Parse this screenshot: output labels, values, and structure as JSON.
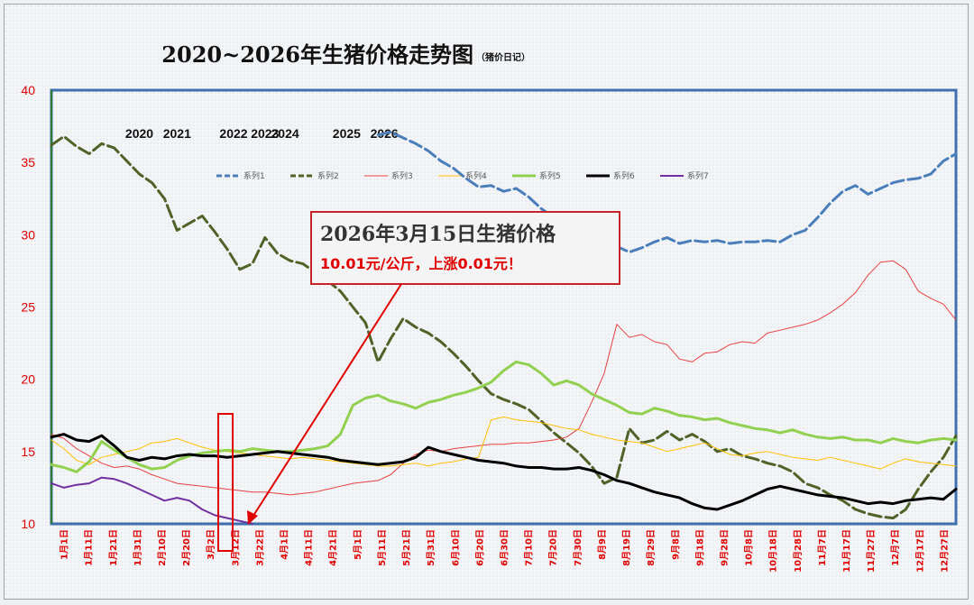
{
  "chart_data": {
    "type": "line",
    "title": "2020~2026年生猪价格走势图",
    "subtitle": "（猪价日记）",
    "xlabel": "",
    "ylabel": "",
    "ylim": [
      10,
      40
    ],
    "y_ticks": [
      "10",
      "15",
      "20",
      "25",
      "30",
      "35",
      "40"
    ],
    "x_range": [
      0,
      72
    ],
    "x_ticks": [
      "1月1日",
      "1月11日",
      "1月21日",
      "1月31日",
      "2月10日",
      "2月20日",
      "3月2日",
      "3月12日",
      "3月22日",
      "4月1日",
      "4月11日",
      "4月21日",
      "5月1日",
      "5月11日",
      "5月21日",
      "5月31日",
      "6月10日",
      "6月20日",
      "6月30日",
      "7月10日",
      "7月20日",
      "7月30日",
      "8月9日",
      "8月19日",
      "8月29日",
      "9月8日",
      "9月18日",
      "9月28日",
      "10月8日",
      "10月18日",
      "10月28日",
      "11月7日",
      "11月17日",
      "11月27日",
      "12月7日",
      "12月17日",
      "12月27日"
    ],
    "year_labels": [
      {
        "text": "2020",
        "x": 7
      },
      {
        "text": "2021",
        "x": 10
      },
      {
        "text": "2022",
        "x": 14.5
      },
      {
        "text": "2023",
        "x": 17
      },
      {
        "text": "2024",
        "x": 18.6
      },
      {
        "text": "2025",
        "x": 23.5
      },
      {
        "text": "2026",
        "x": 26.5
      }
    ],
    "legend_placement": "top",
    "series": [
      {
        "name": "系列1",
        "color": "#4a7ebb",
        "style": "dash",
        "width": 3,
        "x": [
          26,
          27,
          28,
          29,
          30,
          31,
          32,
          33,
          34,
          35,
          36,
          37,
          38,
          39,
          40,
          41,
          42,
          43,
          44,
          45,
          46,
          47,
          48,
          49,
          50,
          51,
          52,
          53,
          54,
          55,
          56,
          57,
          58,
          59,
          60,
          61,
          62,
          63,
          64,
          65,
          66,
          67,
          68,
          69,
          70,
          71,
          72
        ],
        "y": [
          36.9,
          37.1,
          36.7,
          36.3,
          35.8,
          35.1,
          34.6,
          33.9,
          33.3,
          33.4,
          33.0,
          33.2,
          32.6,
          31.8,
          31.2,
          30.6,
          30.1,
          29.8,
          29.9,
          29.2,
          28.8,
          29.1,
          29.5,
          29.8,
          29.4,
          29.6,
          29.5,
          29.6,
          29.4,
          29.5,
          29.5,
          29.6,
          29.5,
          30.0,
          30.3,
          31.2,
          32.2,
          33.0,
          33.4,
          32.8,
          33.2,
          33.6,
          33.8,
          33.9,
          34.2,
          35.1,
          35.6
        ]
      },
      {
        "name": "系列2",
        "color": "#4f6228",
        "style": "dash",
        "width": 3,
        "x": [
          0,
          1,
          2,
          3,
          4,
          5,
          6,
          7,
          8,
          9,
          10,
          11,
          12,
          13,
          14,
          15,
          16,
          17,
          18,
          19,
          20,
          21,
          22,
          23,
          24,
          25,
          26,
          27,
          28,
          29,
          30,
          31,
          32,
          33,
          34,
          35,
          36,
          37,
          38,
          39,
          40,
          41,
          42,
          43,
          44,
          45,
          46,
          47,
          48,
          49,
          50,
          51,
          52,
          53,
          54,
          55,
          56,
          57,
          58,
          59,
          60,
          61,
          62,
          63,
          64,
          65,
          66,
          67,
          68,
          69,
          70,
          71,
          72
        ],
        "y": [
          36.2,
          36.8,
          36.1,
          35.6,
          36.3,
          36.0,
          35.1,
          34.2,
          33.6,
          32.5,
          30.3,
          30.8,
          31.3,
          30.2,
          29.0,
          27.6,
          28.0,
          29.8,
          28.7,
          28.2,
          28.0,
          27.4,
          26.8,
          26.1,
          25.0,
          23.9,
          21.2,
          22.8,
          24.2,
          23.6,
          23.2,
          22.6,
          21.8,
          20.9,
          19.9,
          19.0,
          18.6,
          18.3,
          17.9,
          17.1,
          16.3,
          15.6,
          14.9,
          14.0,
          12.8,
          13.2,
          16.6,
          15.6,
          15.8,
          16.4,
          15.8,
          16.2,
          15.7,
          15.0,
          15.2,
          14.7,
          14.5,
          14.2,
          14.0,
          13.6,
          12.8,
          12.5,
          12.0,
          11.6,
          11.0,
          10.7,
          10.5,
          10.4,
          11.0,
          12.4,
          13.6,
          14.6,
          16.1
        ]
      },
      {
        "name": "系列3",
        "color": "#e84141",
        "style": "solid",
        "width": 1,
        "x": [
          0,
          1,
          2,
          3,
          4,
          5,
          6,
          7,
          8,
          9,
          10,
          11,
          12,
          13,
          14,
          15,
          16,
          17,
          18,
          19,
          20,
          21,
          22,
          23,
          24,
          25,
          26,
          27,
          28,
          29,
          30,
          31,
          32,
          33,
          34,
          35,
          36,
          37,
          38,
          39,
          40,
          41,
          42,
          43,
          44,
          45,
          46,
          47,
          48,
          49,
          50,
          51,
          52,
          53,
          54,
          55,
          56,
          57,
          58,
          59,
          60,
          61,
          62,
          63,
          64,
          65,
          66,
          67,
          68,
          69,
          70,
          71,
          72
        ],
        "y": [
          16.2,
          15.9,
          15.2,
          14.7,
          14.2,
          13.9,
          14.0,
          13.8,
          13.4,
          13.1,
          12.8,
          12.7,
          12.6,
          12.5,
          12.4,
          12.3,
          12.2,
          12.2,
          12.1,
          12.0,
          12.1,
          12.2,
          12.4,
          12.6,
          12.8,
          12.9,
          13.0,
          13.4,
          14.2,
          14.8,
          15.1,
          15.0,
          15.2,
          15.3,
          15.4,
          15.5,
          15.5,
          15.6,
          15.6,
          15.7,
          15.8,
          16.0,
          16.6,
          18.4,
          20.4,
          23.8,
          22.9,
          23.1,
          22.6,
          22.4,
          21.4,
          21.2,
          21.8,
          21.9,
          22.4,
          22.6,
          22.5,
          23.2,
          23.4,
          23.6,
          23.8,
          24.1,
          24.6,
          25.2,
          26.0,
          27.2,
          28.1,
          28.2,
          27.6,
          26.1,
          25.6,
          25.2,
          24.1
        ]
      },
      {
        "name": "系列4",
        "color": "#ffc000",
        "style": "solid",
        "width": 1,
        "x": [
          0,
          1,
          2,
          3,
          4,
          5,
          6,
          7,
          8,
          9,
          10,
          11,
          12,
          13,
          14,
          15,
          16,
          17,
          18,
          19,
          20,
          21,
          22,
          23,
          24,
          25,
          26,
          27,
          28,
          29,
          30,
          31,
          32,
          33,
          34,
          35,
          36,
          37,
          38,
          39,
          40,
          41,
          42,
          43,
          44,
          45,
          46,
          47,
          48,
          49,
          50,
          51,
          52,
          53,
          54,
          55,
          56,
          57,
          58,
          59,
          60,
          61,
          62,
          63,
          64,
          65,
          66,
          67,
          68,
          69,
          70,
          71,
          72
        ],
        "y": [
          15.8,
          15.2,
          14.4,
          14.1,
          14.6,
          14.8,
          15.0,
          15.2,
          15.6,
          15.7,
          15.9,
          15.6,
          15.3,
          15.1,
          15.0,
          14.9,
          14.8,
          14.7,
          14.6,
          14.5,
          14.6,
          14.5,
          14.4,
          14.3,
          14.2,
          14.1,
          14.0,
          14.0,
          14.1,
          14.2,
          14.0,
          14.2,
          14.3,
          14.5,
          14.6,
          17.2,
          17.4,
          17.2,
          17.1,
          17.0,
          16.8,
          16.6,
          16.5,
          16.2,
          16.0,
          15.8,
          15.7,
          15.6,
          15.3,
          15.0,
          15.2,
          15.4,
          15.6,
          15.2,
          14.8,
          14.7,
          14.9,
          15.0,
          14.8,
          14.6,
          14.5,
          14.4,
          14.6,
          14.4,
          14.2,
          14.0,
          13.8,
          14.2,
          14.5,
          14.3,
          14.2,
          14.1,
          14.0
        ]
      },
      {
        "name": "系列5",
        "color": "#92d050",
        "style": "solid",
        "width": 3,
        "x": [
          0,
          1,
          2,
          3,
          4,
          5,
          6,
          7,
          8,
          9,
          10,
          11,
          12,
          13,
          14,
          15,
          16,
          17,
          18,
          19,
          20,
          21,
          22,
          23,
          24,
          25,
          26,
          27,
          28,
          29,
          30,
          31,
          32,
          33,
          34,
          35,
          36,
          37,
          38,
          39,
          40,
          41,
          42,
          43,
          44,
          45,
          46,
          47,
          48,
          49,
          50,
          51,
          52,
          53,
          54,
          55,
          56,
          57,
          58,
          59,
          60,
          61,
          62,
          63,
          64,
          65,
          66,
          67,
          68,
          69,
          70,
          71,
          72
        ],
        "y": [
          14.1,
          13.9,
          13.6,
          14.3,
          15.7,
          15.1,
          14.6,
          14.1,
          13.8,
          13.9,
          14.4,
          14.7,
          14.9,
          15.0,
          15.1,
          15.0,
          15.2,
          15.1,
          15.0,
          15.0,
          15.1,
          15.2,
          15.4,
          16.2,
          18.2,
          18.7,
          18.9,
          18.5,
          18.3,
          18.0,
          18.4,
          18.6,
          18.9,
          19.1,
          19.4,
          19.8,
          20.6,
          21.2,
          21.0,
          20.4,
          19.6,
          19.9,
          19.6,
          19.0,
          18.6,
          18.2,
          17.7,
          17.6,
          18.0,
          17.8,
          17.5,
          17.4,
          17.2,
          17.3,
          17.0,
          16.8,
          16.6,
          16.5,
          16.3,
          16.5,
          16.2,
          16.0,
          15.9,
          16.0,
          15.8,
          15.8,
          15.6,
          15.9,
          15.7,
          15.6,
          15.8,
          15.9,
          15.8
        ]
      },
      {
        "name": "系列6",
        "color": "#000000",
        "style": "solid",
        "width": 3,
        "x": [
          0,
          1,
          2,
          3,
          4,
          5,
          6,
          7,
          8,
          9,
          10,
          11,
          12,
          13,
          14,
          15,
          16,
          17,
          18,
          19,
          20,
          21,
          22,
          23,
          24,
          25,
          26,
          27,
          28,
          29,
          30,
          31,
          32,
          33,
          34,
          35,
          36,
          37,
          38,
          39,
          40,
          41,
          42,
          43,
          44,
          45,
          46,
          47,
          48,
          49,
          50,
          51,
          52,
          53,
          54,
          55,
          56,
          57,
          58,
          59,
          60,
          61,
          62,
          63,
          64,
          65,
          66,
          67,
          68,
          69,
          70,
          71,
          72
        ],
        "y": [
          16.0,
          16.2,
          15.8,
          15.7,
          16.1,
          15.4,
          14.6,
          14.4,
          14.6,
          14.5,
          14.7,
          14.8,
          14.7,
          14.7,
          14.6,
          14.7,
          14.8,
          14.9,
          15.0,
          14.9,
          14.8,
          14.7,
          14.6,
          14.4,
          14.3,
          14.2,
          14.1,
          14.2,
          14.3,
          14.6,
          15.3,
          15.0,
          14.8,
          14.6,
          14.4,
          14.3,
          14.2,
          14.0,
          13.9,
          13.9,
          13.8,
          13.8,
          13.9,
          13.7,
          13.4,
          13.0,
          12.8,
          12.5,
          12.2,
          12.0,
          11.8,
          11.4,
          11.1,
          11.0,
          11.3,
          11.6,
          12.0,
          12.4,
          12.6,
          12.4,
          12.2,
          12.0,
          11.9,
          11.8,
          11.6,
          11.4,
          11.5,
          11.4,
          11.6,
          11.7,
          11.8,
          11.7,
          12.4
        ]
      },
      {
        "name": "系列7",
        "color": "#7030a0",
        "style": "solid",
        "width": 2,
        "x": [
          0,
          1,
          2,
          3,
          4,
          5,
          6,
          7,
          8,
          9,
          10,
          11,
          12,
          13,
          14,
          15,
          16
        ],
        "y": [
          12.8,
          12.5,
          12.7,
          12.8,
          13.2,
          13.1,
          12.8,
          12.4,
          12.0,
          11.6,
          11.8,
          11.6,
          11.0,
          10.6,
          10.4,
          10.2,
          10.01
        ]
      }
    ],
    "annotation": {
      "title": "2026年3月15日生猪价格",
      "subtitle": "10.01元/公斤，上涨0.01元！"
    }
  }
}
